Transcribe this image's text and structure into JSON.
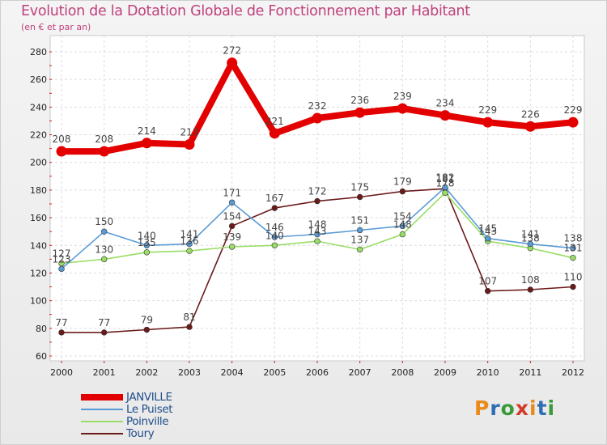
{
  "title": "Evolution de la Dotation Globale de Fonctionnement par Habitant",
  "subtitle": "(en € et par an)",
  "logo": {
    "letters": [
      "P",
      "r",
      "o",
      "x",
      "i",
      "t",
      "i"
    ],
    "colors": [
      "#e98a1a",
      "#2f6db5",
      "#3a9a3a",
      "#d23a2a",
      "#e98a1a",
      "#2f6db5",
      "#3a9a3a"
    ]
  },
  "chart_data": {
    "type": "line",
    "title": "Evolution de la Dotation Globale de Fonctionnement par Habitant",
    "subtitle": "(en € et par an)",
    "xlabel": "",
    "ylabel": "",
    "x": [
      "2000",
      "2001",
      "2002",
      "2003",
      "2004",
      "2005",
      "2006",
      "2007",
      "2008",
      "2009",
      "2010",
      "2011",
      "2012"
    ],
    "ylim": [
      60,
      280
    ],
    "yticks": [
      60,
      80,
      100,
      120,
      140,
      160,
      180,
      200,
      220,
      240,
      260,
      280
    ],
    "grid": true,
    "legend_position": "bottom-left",
    "series": [
      {
        "name": "JANVILLE",
        "color": "#e30000",
        "values": [
          208,
          208,
          214,
          213,
          272,
          221,
          232,
          236,
          239,
          234,
          229,
          226,
          229
        ]
      },
      {
        "name": "Le Puiset",
        "color": "#5a9bd5",
        "values": [
          123,
          150,
          140,
          141,
          171,
          146,
          148,
          151,
          154,
          182,
          145,
          141,
          138
        ]
      },
      {
        "name": "Poinville",
        "color": "#99dd66",
        "values": [
          127,
          130,
          135,
          136,
          139,
          140,
          143,
          137,
          148,
          178,
          143,
          138,
          131
        ]
      },
      {
        "name": "Toury",
        "color": "#6b1a1a",
        "values": [
          77,
          77,
          79,
          81,
          154,
          167,
          172,
          175,
          179,
          181,
          107,
          108,
          110
        ]
      }
    ]
  }
}
